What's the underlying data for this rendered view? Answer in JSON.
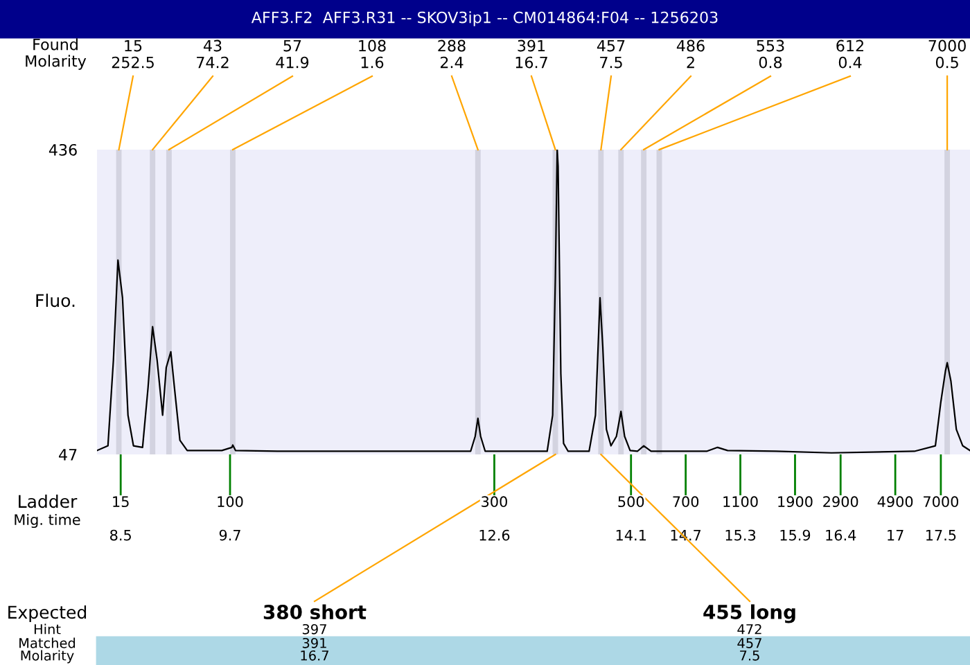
{
  "chart_data": {
    "type": "line",
    "title": "AFF3.F2  AFF3.R31 -- SKOV3ip1 -- CM014864:F04 -- 1256203",
    "ylabel": "Fluo.",
    "x": [
      8.24,
      8.36,
      8.42,
      8.47,
      8.52,
      8.58,
      8.64,
      8.74,
      8.8,
      8.85,
      8.9,
      8.96,
      9.0,
      9.05,
      9.09,
      9.15,
      9.23,
      9.61,
      9.72,
      9.73,
      9.76,
      10.22,
      11.74,
      12.34,
      12.39,
      12.42,
      12.45,
      12.5,
      12.95,
      13.18,
      13.24,
      13.27,
      13.29,
      13.3,
      13.33,
      13.36,
      13.41,
      13.64,
      13.71,
      13.76,
      13.79,
      13.83,
      13.88,
      13.94,
      13.99,
      14.03,
      14.09,
      14.17,
      14.24,
      14.32,
      14.62,
      14.93,
      15.05,
      15.16,
      15.69,
      16.3,
      17.21,
      17.44,
      17.5,
      17.55,
      17.57,
      17.61,
      17.67,
      17.74,
      17.82
    ],
    "series": [
      {
        "color": "#000000",
        "values": [
          52,
          58,
          167,
          295,
          247,
          97,
          58,
          56,
          132,
          210,
          167,
          97,
          158,
          178,
          132,
          65,
          52,
          52,
          56,
          59,
          52,
          51,
          51,
          51,
          70,
          93,
          70,
          51,
          51,
          51,
          97,
          273,
          436,
          415,
          150,
          61,
          51,
          51,
          97,
          247,
          185,
          79,
          58,
          70,
          102,
          70,
          52,
          51,
          58,
          51,
          51,
          51,
          56,
          52,
          51,
          49,
          51,
          58,
          114,
          153,
          164,
          141,
          79,
          58,
          52
        ]
      }
    ],
    "xlim": [
      8.24,
      17.82
    ],
    "ylim": [
      47,
      436
    ],
    "yticks": [
      47,
      436
    ],
    "xticks": [
      8.5,
      9.7,
      12.6,
      14.1,
      14.7,
      15.3,
      15.9,
      16.4,
      17,
      17.5
    ],
    "bands": [
      {
        "axis": "x",
        "from": 8.45,
        "to": 8.51,
        "color": "#d3d3e0"
      },
      {
        "axis": "x",
        "from": 8.82,
        "to": 8.88,
        "color": "#d3d3e0"
      },
      {
        "axis": "x",
        "from": 9.0,
        "to": 9.06,
        "color": "#d3d3e0"
      },
      {
        "axis": "x",
        "from": 9.7,
        "to": 9.76,
        "color": "#d3d3e0"
      },
      {
        "axis": "x",
        "from": 12.39,
        "to": 12.45,
        "color": "#d3d3e0"
      },
      {
        "axis": "x",
        "from": 13.24,
        "to": 13.3,
        "color": "#d3d3e0"
      },
      {
        "axis": "x",
        "from": 13.74,
        "to": 13.8,
        "color": "#d3d3e0"
      },
      {
        "axis": "x",
        "from": 13.96,
        "to": 14.02,
        "color": "#d3d3e0"
      },
      {
        "axis": "x",
        "from": 14.21,
        "to": 14.27,
        "color": "#d3d3e0"
      },
      {
        "axis": "x",
        "from": 14.38,
        "to": 14.44,
        "color": "#d3d3e0"
      },
      {
        "axis": "x",
        "from": 17.54,
        "to": 17.6,
        "color": "#d3d3e0"
      }
    ],
    "annotations": [
      "Found",
      "Molarity",
      {
        "text": "15\n252.5",
        "x": 8.48,
        "y": 436
      },
      {
        "text": "43\n74.2",
        "x": 8.85,
        "y": 436
      },
      {
        "text": "57\n41.9",
        "x": 9.03,
        "y": 436
      },
      {
        "text": "108\n1.6",
        "x": 9.73,
        "y": 436
      },
      {
        "text": "288\n2.4",
        "x": 12.42,
        "y": 436
      },
      {
        "text": "391\n16.7",
        "x": 13.27,
        "y": 436
      },
      {
        "text": "457\n7.5",
        "x": 13.77,
        "y": 436
      },
      {
        "text": "486\n2",
        "x": 13.99,
        "y": 436
      },
      {
        "text": "553\n0.8",
        "x": 14.24,
        "y": 436
      },
      {
        "text": "612\n0.4",
        "x": 14.41,
        "y": 436
      },
      {
        "text": "7000\n0.5",
        "x": 17.57,
        "y": 436
      },
      "Ladder",
      "Mig. time",
      "Expected",
      "Hint",
      "Matched",
      "Molarity",
      {
        "text": "380 short",
        "x": 13.27,
        "y": 47
      },
      {
        "text": "455 long",
        "x": 13.77,
        "y": 47
      },
      "397",
      "391",
      "16.7",
      "472",
      "457",
      "7.5",
      {
        "text": "15",
        "x": 8.5,
        "y": 47
      },
      {
        "text": "100",
        "x": 9.7,
        "y": 47
      },
      {
        "text": "300",
        "x": 12.6,
        "y": 47
      },
      {
        "text": "500",
        "x": 14.1,
        "y": 47
      },
      {
        "text": "700",
        "x": 14.7,
        "y": 47
      },
      {
        "text": "1100",
        "x": 15.3,
        "y": 47
      },
      {
        "text": "1900",
        "x": 15.9,
        "y": 47
      },
      {
        "text": "2900",
        "x": 16.4,
        "y": 47
      },
      {
        "text": "4900",
        "x": 17,
        "y": 47
      },
      {
        "text": "7000",
        "x": 17.5,
        "y": 47
      }
    ]
  }
}
